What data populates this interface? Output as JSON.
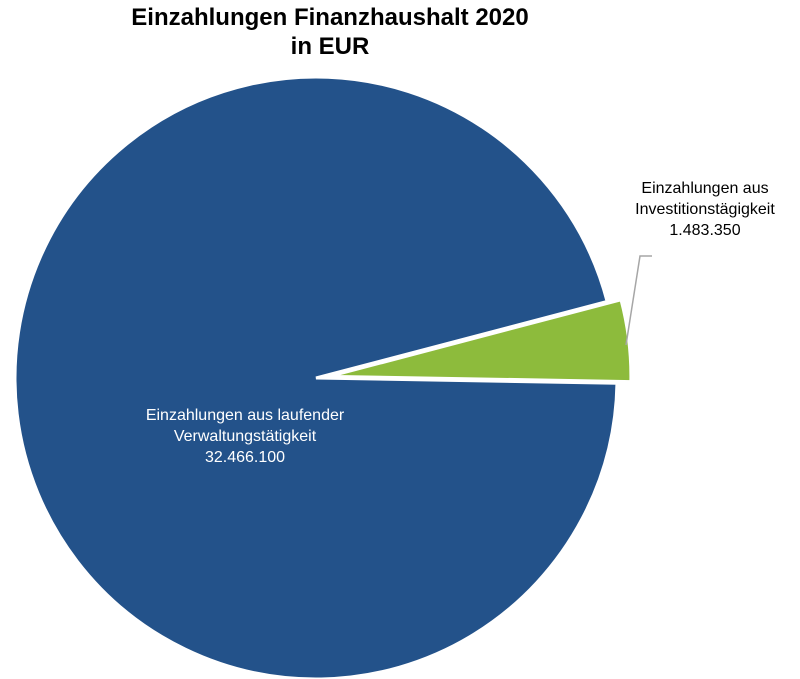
{
  "chart_data": {
    "type": "pie",
    "title": [
      "Einzahlungen Finanzhaushalt 2020",
      "in EUR"
    ],
    "categories": [
      "Einzahlungen aus laufender Verwaltungstätigkeit",
      "Einzahlungen aus Investitionstägigkeit"
    ],
    "values": [
      32466100,
      1483350
    ],
    "value_labels": [
      "32.466.100",
      "1.483.350"
    ],
    "colors": [
      "#23528a",
      "#8dbb3c"
    ]
  }
}
